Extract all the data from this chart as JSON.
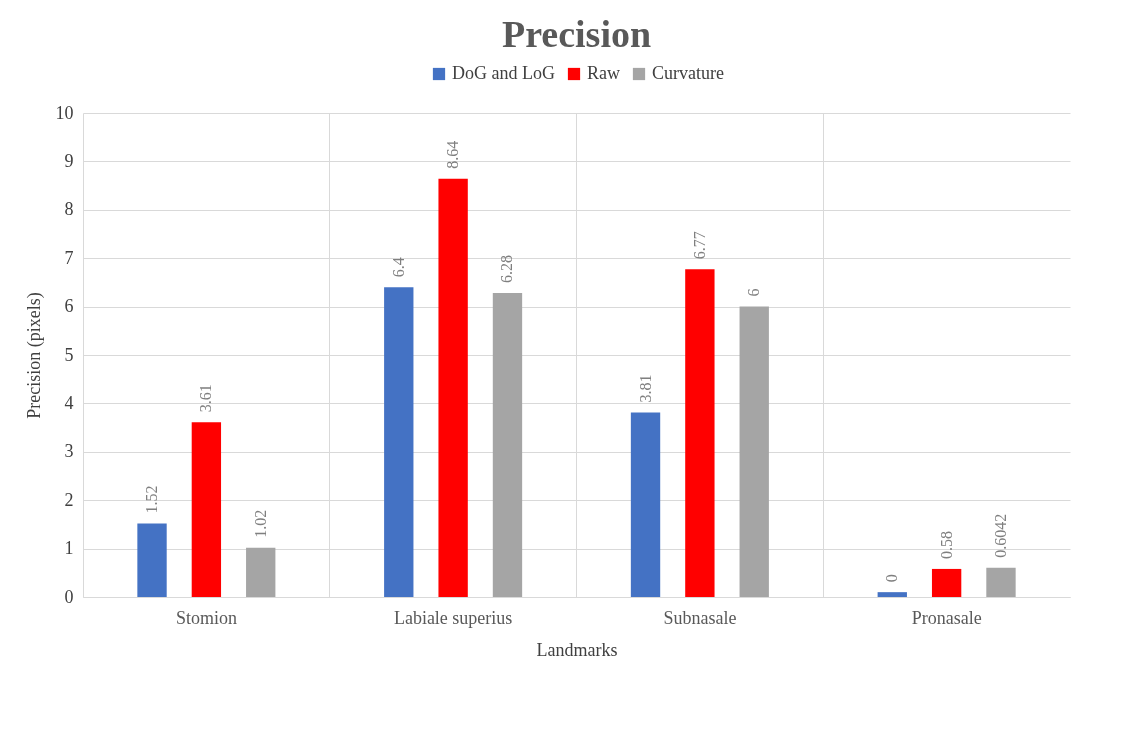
{
  "chart_data": {
    "type": "bar",
    "title": "Precision",
    "xlabel": "Landmarks",
    "ylabel": "Precision (pixels)",
    "categories": [
      "Stomion",
      "Labiale superius",
      "Subnasale",
      "Pronasale"
    ],
    "series": [
      {
        "name": "DoG and LoG",
        "color": "#4472c4",
        "values": [
          1.52,
          6.4,
          3.81,
          0.1
        ],
        "value_labels": [
          "1.52",
          "6.4",
          "3.81",
          "0"
        ]
      },
      {
        "name": "Raw",
        "color": "#ff0000",
        "values": [
          3.61,
          8.64,
          6.77,
          0.58
        ],
        "value_labels": [
          "3.61",
          "8.64",
          "6.77",
          "0.58"
        ]
      },
      {
        "name": "Curvature",
        "color": "#a5a5a5",
        "values": [
          1.02,
          6.28,
          6,
          0.6042
        ],
        "value_labels": [
          "1.02",
          "6.28",
          "6",
          "0.6042"
        ]
      }
    ],
    "ylim": [
      0,
      10
    ],
    "yticks": [
      0,
      1,
      2,
      3,
      4,
      5,
      6,
      7,
      8,
      9,
      10
    ],
    "grid": true,
    "legend": "top"
  }
}
